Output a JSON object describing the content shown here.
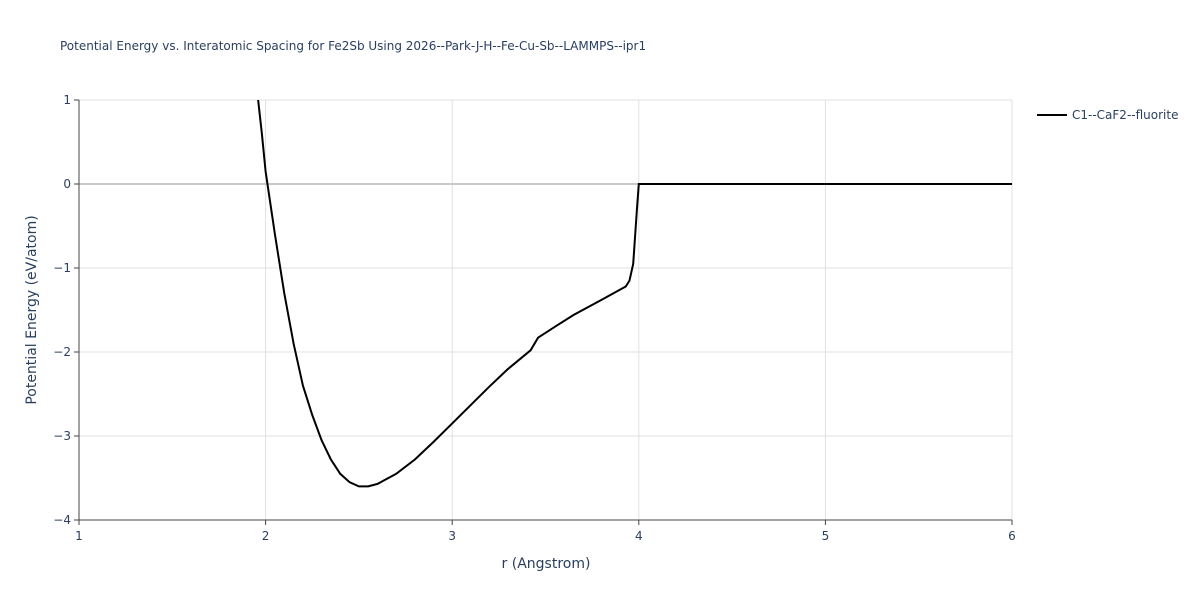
{
  "chart_data": {
    "type": "line",
    "title": "Potential Energy vs. Interatomic Spacing for Fe2Sb Using 2026--Park-J-H--Fe-Cu-Sb--LAMMPS--ipr1",
    "x_label": "r (Angstrom)",
    "y_label": "Potential Energy (eV/atom)",
    "xlim": [
      1,
      6
    ],
    "xticks": [
      1,
      2,
      3,
      4,
      5,
      6
    ],
    "ylim": [
      -4,
      1
    ],
    "yticks": [
      {
        "value": -4,
        "label": "−4"
      },
      {
        "value": -3,
        "label": "−3"
      },
      {
        "value": -2,
        "label": "−2"
      },
      {
        "value": -1,
        "label": "−1"
      },
      0,
      1
    ],
    "grid": true,
    "legend": "right",
    "x": [
      1.96,
      1.98,
      2.0,
      2.05,
      2.1,
      2.15,
      2.2,
      2.25,
      2.3,
      2.35,
      2.4,
      2.45,
      2.5,
      2.55,
      2.6,
      2.7,
      2.8,
      2.9,
      3.0,
      3.1,
      3.2,
      3.3,
      3.42,
      3.46,
      3.55,
      3.65,
      3.8,
      3.93,
      3.95,
      3.97,
      3.99,
      4.0,
      6.0
    ],
    "series": [
      {
        "name": "C1--CaF2--fluorite",
        "color": "#000000",
        "values": [
          1.0,
          0.6,
          0.15,
          -0.6,
          -1.3,
          -1.9,
          -2.4,
          -2.75,
          -3.05,
          -3.28,
          -3.45,
          -3.55,
          -3.6,
          -3.6,
          -3.57,
          -3.45,
          -3.28,
          -3.07,
          -2.85,
          -2.63,
          -2.41,
          -2.2,
          -1.98,
          -1.83,
          -1.7,
          -1.56,
          -1.38,
          -1.22,
          -1.15,
          -0.95,
          -0.3,
          0,
          0
        ]
      }
    ]
  }
}
